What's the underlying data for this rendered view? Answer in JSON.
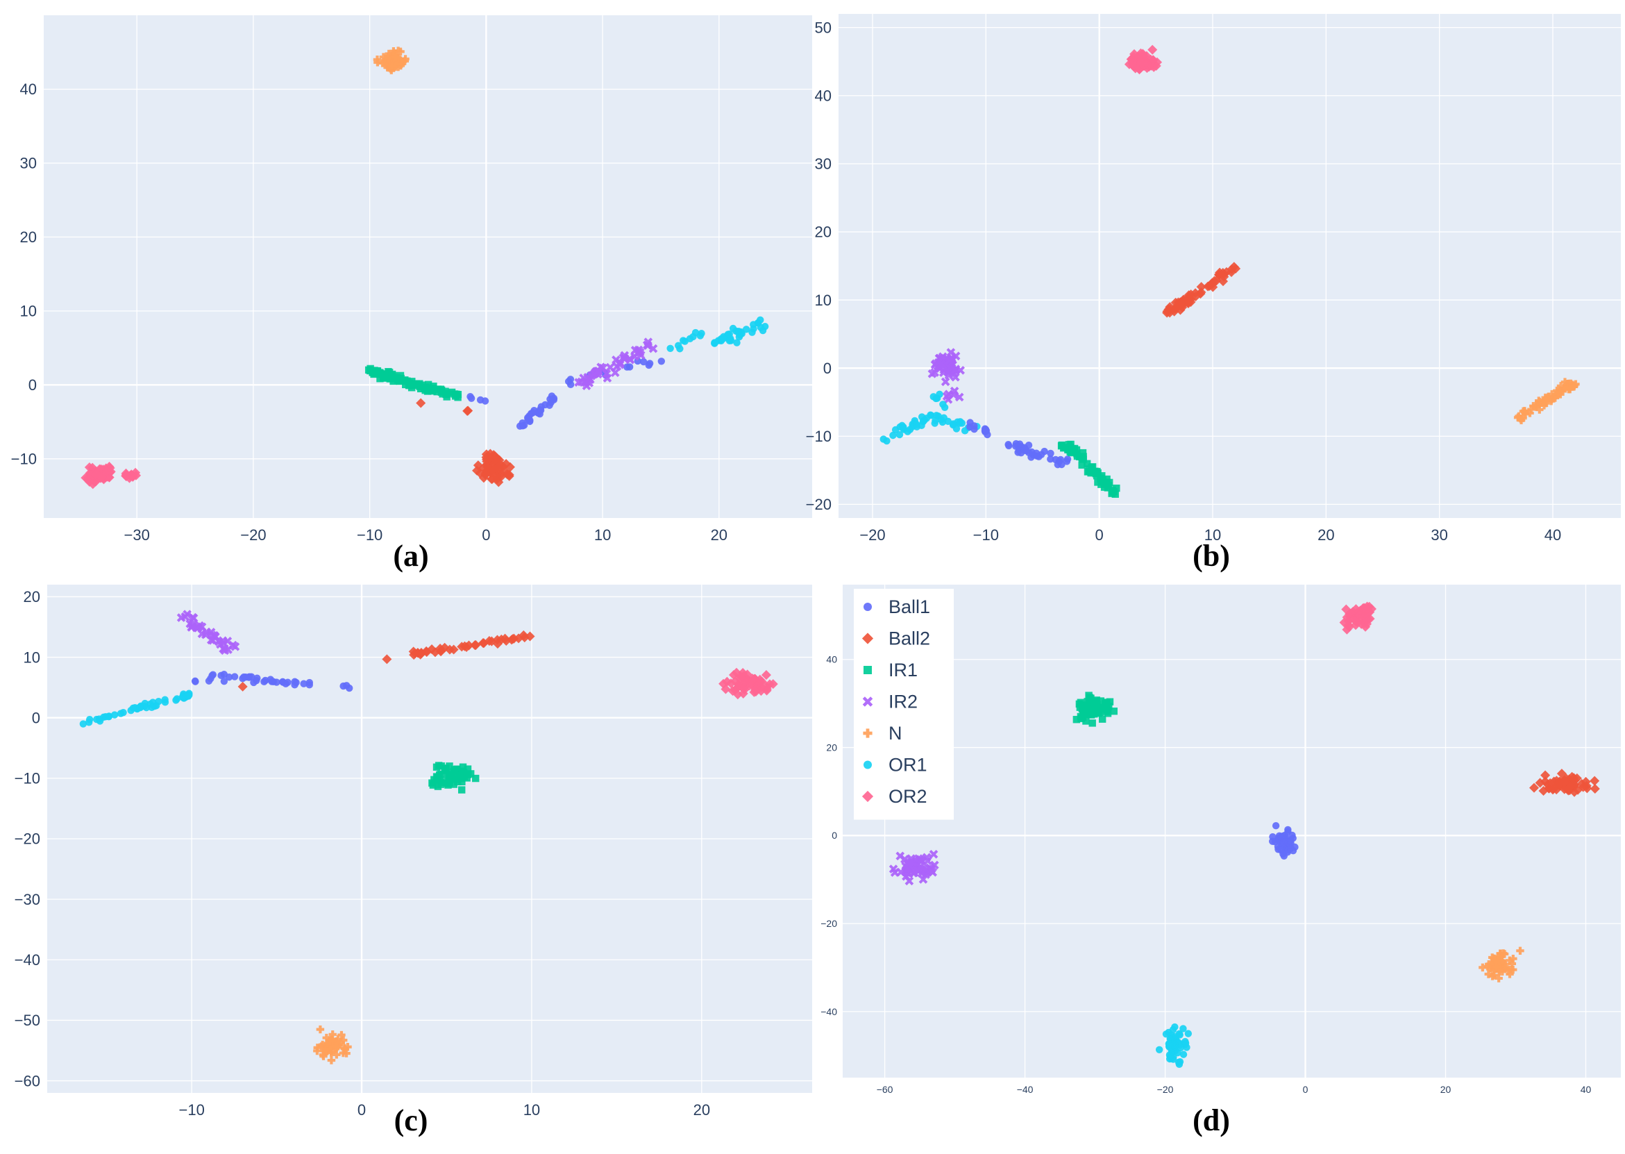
{
  "palette": {
    "Ball1": "#636EFA",
    "Ball2": "#EF553B",
    "IR1": "#00CC96",
    "IR2": "#AB63FA",
    "N": "#FFA15A",
    "OR1": "#19D3F3",
    "OR2": "#FF6692"
  },
  "markers": {
    "Ball1": "circle",
    "Ball2": "diamond",
    "IR1": "square",
    "IR2": "x",
    "N": "cross",
    "OR1": "circle",
    "OR2": "diamond"
  },
  "legend": {
    "placement": "top-left",
    "entries": [
      "Ball1",
      "Ball2",
      "IR1",
      "IR2",
      "N",
      "OR1",
      "OR2"
    ]
  },
  "chart_data": [
    {
      "type": "scatter",
      "caption": "(a)",
      "xlim": [
        -38,
        28
      ],
      "ylim": [
        -18,
        50
      ],
      "xticks": [
        -30,
        -20,
        -10,
        0,
        10,
        20
      ],
      "yticks": [
        -10,
        0,
        10,
        20,
        30,
        40
      ],
      "grid": true,
      "series": [
        {
          "name": "N",
          "clusters": [
            {
              "x": [
                -9.5,
                -6.5
              ],
              "y": [
                42.2,
                45.5
              ],
              "n": 70
            }
          ]
        },
        {
          "name": "OR2",
          "clusters": [
            {
              "x": [
                -35,
                -31.5
              ],
              "y": [
                -14,
                -10.5
              ],
              "n": 60
            },
            {
              "x": [
                -31.5,
                -29.5
              ],
              "y": [
                -13,
                -11.5
              ],
              "n": 12
            }
          ]
        },
        {
          "name": "IR1",
          "clusters": [
            {
              "x": [
                -10.3,
                -3.2
              ],
              "y": [
                2.2,
                -1.3
              ],
              "thickness": 1.4,
              "n": 80
            },
            {
              "x": [
                -3.2,
                -2
              ],
              "y": [
                -0.5,
                -2.2
              ],
              "thickness": 0.6,
              "n": 6
            }
          ]
        },
        {
          "name": "Ball1",
          "clusters": [
            {
              "x": [
                -2,
                0
              ],
              "y": [
                -1.5,
                -2
              ],
              "thickness": 0.5,
              "n": 4
            },
            {
              "x": [
                2.5,
                6
              ],
              "y": [
                -6,
                -1.5
              ],
              "thickness": 1.2,
              "n": 25
            },
            {
              "x": [
                7,
                15
              ],
              "y": [
                0.5,
                3.5
              ],
              "thickness": 1.8,
              "n": 14
            }
          ]
        },
        {
          "name": "IR2",
          "clusters": [
            {
              "x": [
                8,
                15
              ],
              "y": [
                0,
                6
              ],
              "thickness": 2.0,
              "n": 45
            }
          ]
        },
        {
          "name": "OR1",
          "clusters": [
            {
              "x": [
                15.5,
                19
              ],
              "y": [
                4.5,
                7.5
              ],
              "thickness": 1.2,
              "n": 10
            },
            {
              "x": [
                19.5,
                23.8
              ],
              "y": [
                5.5,
                8.5
              ],
              "thickness": 2.2,
              "n": 35
            }
          ]
        },
        {
          "name": "Ball2",
          "clusters": [
            {
              "x": [
                -1.5,
                2.5
              ],
              "y": [
                -14,
                -8
              ],
              "n": 55
            },
            {
              "x": [
                -1.8,
                -1.4
              ],
              "y": [
                -3.8,
                -3.2
              ],
              "n": 2
            },
            {
              "x": [
                -5.8,
                -5.4
              ],
              "y": [
                -2.6,
                -2.2
              ],
              "n": 1
            }
          ]
        }
      ]
    },
    {
      "type": "scatter",
      "caption": "(b)",
      "xlim": [
        -23,
        46
      ],
      "ylim": [
        -22,
        52
      ],
      "xticks": [
        -20,
        -10,
        0,
        10,
        20,
        30,
        40
      ],
      "yticks": [
        -20,
        -10,
        0,
        10,
        20,
        30,
        40,
        50
      ],
      "grid": true,
      "series": [
        {
          "name": "OR2",
          "clusters": [
            {
              "x": [
                2,
                6
              ],
              "y": [
                43,
                47
              ],
              "n": 65
            }
          ]
        },
        {
          "name": "Ball2",
          "clusters": [
            {
              "x": [
                6,
                12
              ],
              "y": [
                8,
                15
              ],
              "thickness": 1.4,
              "n": 60
            }
          ]
        },
        {
          "name": "N",
          "clusters": [
            {
              "x": [
                37,
                42
              ],
              "y": [
                -7.5,
                -2
              ],
              "thickness": 1.4,
              "n": 60
            }
          ]
        },
        {
          "name": "IR2",
          "clusters": [
            {
              "x": [
                -15.5,
                -11.5
              ],
              "y": [
                -2.5,
                3
              ],
              "n": 45
            },
            {
              "x": [
                -14,
                -12
              ],
              "y": [
                -6,
                -2
              ],
              "n": 6
            }
          ]
        },
        {
          "name": "OR1",
          "clusters": [
            {
              "x": [
                -19,
                -15
              ],
              "y": [
                -10.5,
                -7
              ],
              "thickness": 1.6,
              "n": 25
            },
            {
              "x": [
                -15,
                -11
              ],
              "y": [
                -7,
                -9
              ],
              "thickness": 1.6,
              "n": 20
            },
            {
              "x": [
                -14.5,
                -13.5
              ],
              "y": [
                -4,
                -6
              ],
              "thickness": 1.0,
              "n": 6
            }
          ]
        },
        {
          "name": "Ball1",
          "clusters": [
            {
              "x": [
                -11.5,
                -9.5
              ],
              "y": [
                -8,
                -10
              ],
              "thickness": 1.2,
              "n": 10
            },
            {
              "x": [
                -8,
                -3
              ],
              "y": [
                -11,
                -14
              ],
              "thickness": 2.2,
              "n": 35
            }
          ]
        },
        {
          "name": "IR1",
          "clusters": [
            {
              "x": [
                -3,
                1.5
              ],
              "y": [
                -11,
                -18.5
              ],
              "thickness": 1.8,
              "n": 60
            }
          ]
        }
      ]
    },
    {
      "type": "scatter",
      "caption": "(c)",
      "xlim": [
        -18.5,
        26.5
      ],
      "ylim": [
        -62,
        22
      ],
      "xticks": [
        -10,
        0,
        10,
        20
      ],
      "yticks": [
        -60,
        -50,
        -40,
        -30,
        -20,
        -10,
        0,
        10,
        20
      ],
      "grid": true,
      "series": [
        {
          "name": "IR2",
          "clusters": [
            {
              "x": [
                -10.5,
                -7.5
              ],
              "y": [
                17,
                10.5
              ],
              "thickness": 1.5,
              "n": 35
            }
          ]
        },
        {
          "name": "Ball1",
          "clusters": [
            {
              "x": [
                -9,
                -0.5
              ],
              "y": [
                7,
                5
              ],
              "thickness": 1.6,
              "n": 35
            },
            {
              "x": [
                -10.5,
                -8.5
              ],
              "y": [
                5.5,
                6.5
              ],
              "thickness": 0.8,
              "n": 4
            }
          ]
        },
        {
          "name": "OR1",
          "clusters": [
            {
              "x": [
                -16.5,
                -10
              ],
              "y": [
                -1,
                4
              ],
              "thickness": 0.9,
              "n": 45
            }
          ]
        },
        {
          "name": "Ball2",
          "clusters": [
            {
              "x": [
                3,
                10
              ],
              "y": [
                10.5,
                13.5
              ],
              "thickness": 1.0,
              "n": 40
            },
            {
              "x": [
                1.2,
                1.6
              ],
              "y": [
                9.5,
                10
              ],
              "n": 1
            },
            {
              "x": [
                -7.3,
                -6.9
              ],
              "y": [
                5,
                5.4
              ],
              "n": 1
            }
          ]
        },
        {
          "name": "OR2",
          "clusters": [
            {
              "x": [
                21,
                24.5
              ],
              "y": [
                3,
                8
              ],
              "n": 55
            }
          ]
        },
        {
          "name": "IR1",
          "clusters": [
            {
              "x": [
                3.5,
                7
              ],
              "y": [
                -12.5,
                -7
              ],
              "n": 55
            }
          ]
        },
        {
          "name": "N",
          "clusters": [
            {
              "x": [
                -3,
                -0.5
              ],
              "y": [
                -57,
                -51
              ],
              "n": 50
            }
          ]
        }
      ]
    },
    {
      "type": "scatter",
      "caption": "(d)",
      "xlim": [
        -66,
        45
      ],
      "ylim": [
        -55,
        57
      ],
      "xticks": [
        -60,
        -40,
        -20,
        0,
        20,
        40
      ],
      "yticks": [
        -40,
        -20,
        0,
        20,
        40
      ],
      "grid": true,
      "series": [
        {
          "name": "OR2",
          "clusters": [
            {
              "x": [
                4.5,
                11
              ],
              "y": [
                46,
                54
              ],
              "n": 55
            }
          ]
        },
        {
          "name": "IR1",
          "clusters": [
            {
              "x": [
                -34,
                -26.5
              ],
              "y": [
                25,
                33
              ],
              "n": 60
            }
          ]
        },
        {
          "name": "Ball2",
          "clusters": [
            {
              "x": [
                32,
                42
              ],
              "y": [
                9,
                14.5
              ],
              "n": 65
            }
          ]
        },
        {
          "name": "Ball1",
          "clusters": [
            {
              "x": [
                -5,
                -1
              ],
              "y": [
                -6.5,
                3
              ],
              "n": 55
            }
          ]
        },
        {
          "name": "IR2",
          "clusters": [
            {
              "x": [
                -60,
                -51.5
              ],
              "y": [
                -11,
                -3.5
              ],
              "n": 55
            }
          ]
        },
        {
          "name": "N",
          "clusters": [
            {
              "x": [
                24.5,
                31
              ],
              "y": [
                -34,
                -24.5
              ],
              "n": 55
            }
          ]
        },
        {
          "name": "OR1",
          "clusters": [
            {
              "x": [
                -21,
                -16
              ],
              "y": [
                -53,
                -42
              ],
              "n": 55
            }
          ]
        }
      ]
    }
  ]
}
